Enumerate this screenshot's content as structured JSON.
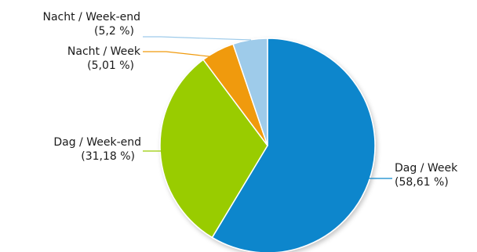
{
  "chart_data": {
    "type": "pie",
    "title": "",
    "slices": [
      {
        "label": "Dag / Week",
        "value": 58.61,
        "value_label": "(58,61 %)",
        "color": "#0a86cc"
      },
      {
        "label": "Dag / Week-end",
        "value": 31.18,
        "value_label": "(31,18 %)",
        "color": "#99cc00"
      },
      {
        "label": "Nacht / Week",
        "value": 5.01,
        "value_label": "(5,01 %)",
        "color": "#f09a0c"
      },
      {
        "label": "Nacht / Week-end",
        "value": 5.2,
        "value_label": "(5,2 %)",
        "color": "#9ecbea"
      }
    ],
    "start_angle": "top",
    "direction": "clockwise",
    "legend": "none",
    "labels": "outside-with-leader-lines"
  }
}
